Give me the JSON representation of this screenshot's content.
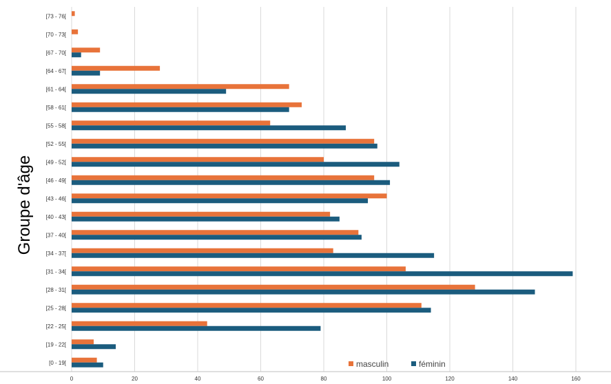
{
  "colors": {
    "masculin": "#E8733A",
    "feminin": "#1B5C7E",
    "grid": "#D9D9D9",
    "axis": "#BFBFBF"
  },
  "chart_data": {
    "type": "bar",
    "orientation": "horizontal",
    "title": "",
    "xlabel": "",
    "ylabel": "Groupe d'âge",
    "xlim": [
      0,
      160
    ],
    "xticks": [
      0,
      20,
      40,
      60,
      80,
      100,
      120,
      140,
      160
    ],
    "grid": "vertical",
    "legend_position": "bottom-right",
    "categories": [
      "[0 - 19[",
      "[19 - 22[",
      "[22 - 25[",
      "[25 - 28[",
      "[28 - 31[",
      "[31 - 34[",
      "[34 - 37[",
      "[37 - 40[",
      "[40 - 43[",
      "[43 - 46[",
      "[46 - 49[",
      "[49 - 52[",
      "[52 - 55[",
      "[55 - 58[",
      "[58 - 61[",
      "[61 - 64[",
      "[64 - 67[",
      "[67 - 70[",
      "[70 - 73[",
      "[73 - 76["
    ],
    "series": [
      {
        "name": "masculin",
        "values": [
          8,
          7,
          43,
          111,
          128,
          106,
          83,
          91,
          82,
          100,
          96,
          80,
          96,
          63,
          73,
          69,
          28,
          9,
          2,
          1
        ]
      },
      {
        "name": "féminin",
        "values": [
          10,
          14,
          79,
          114,
          147,
          159,
          115,
          92,
          85,
          94,
          101,
          104,
          97,
          87,
          69,
          49,
          9,
          3,
          0,
          0
        ]
      }
    ]
  }
}
